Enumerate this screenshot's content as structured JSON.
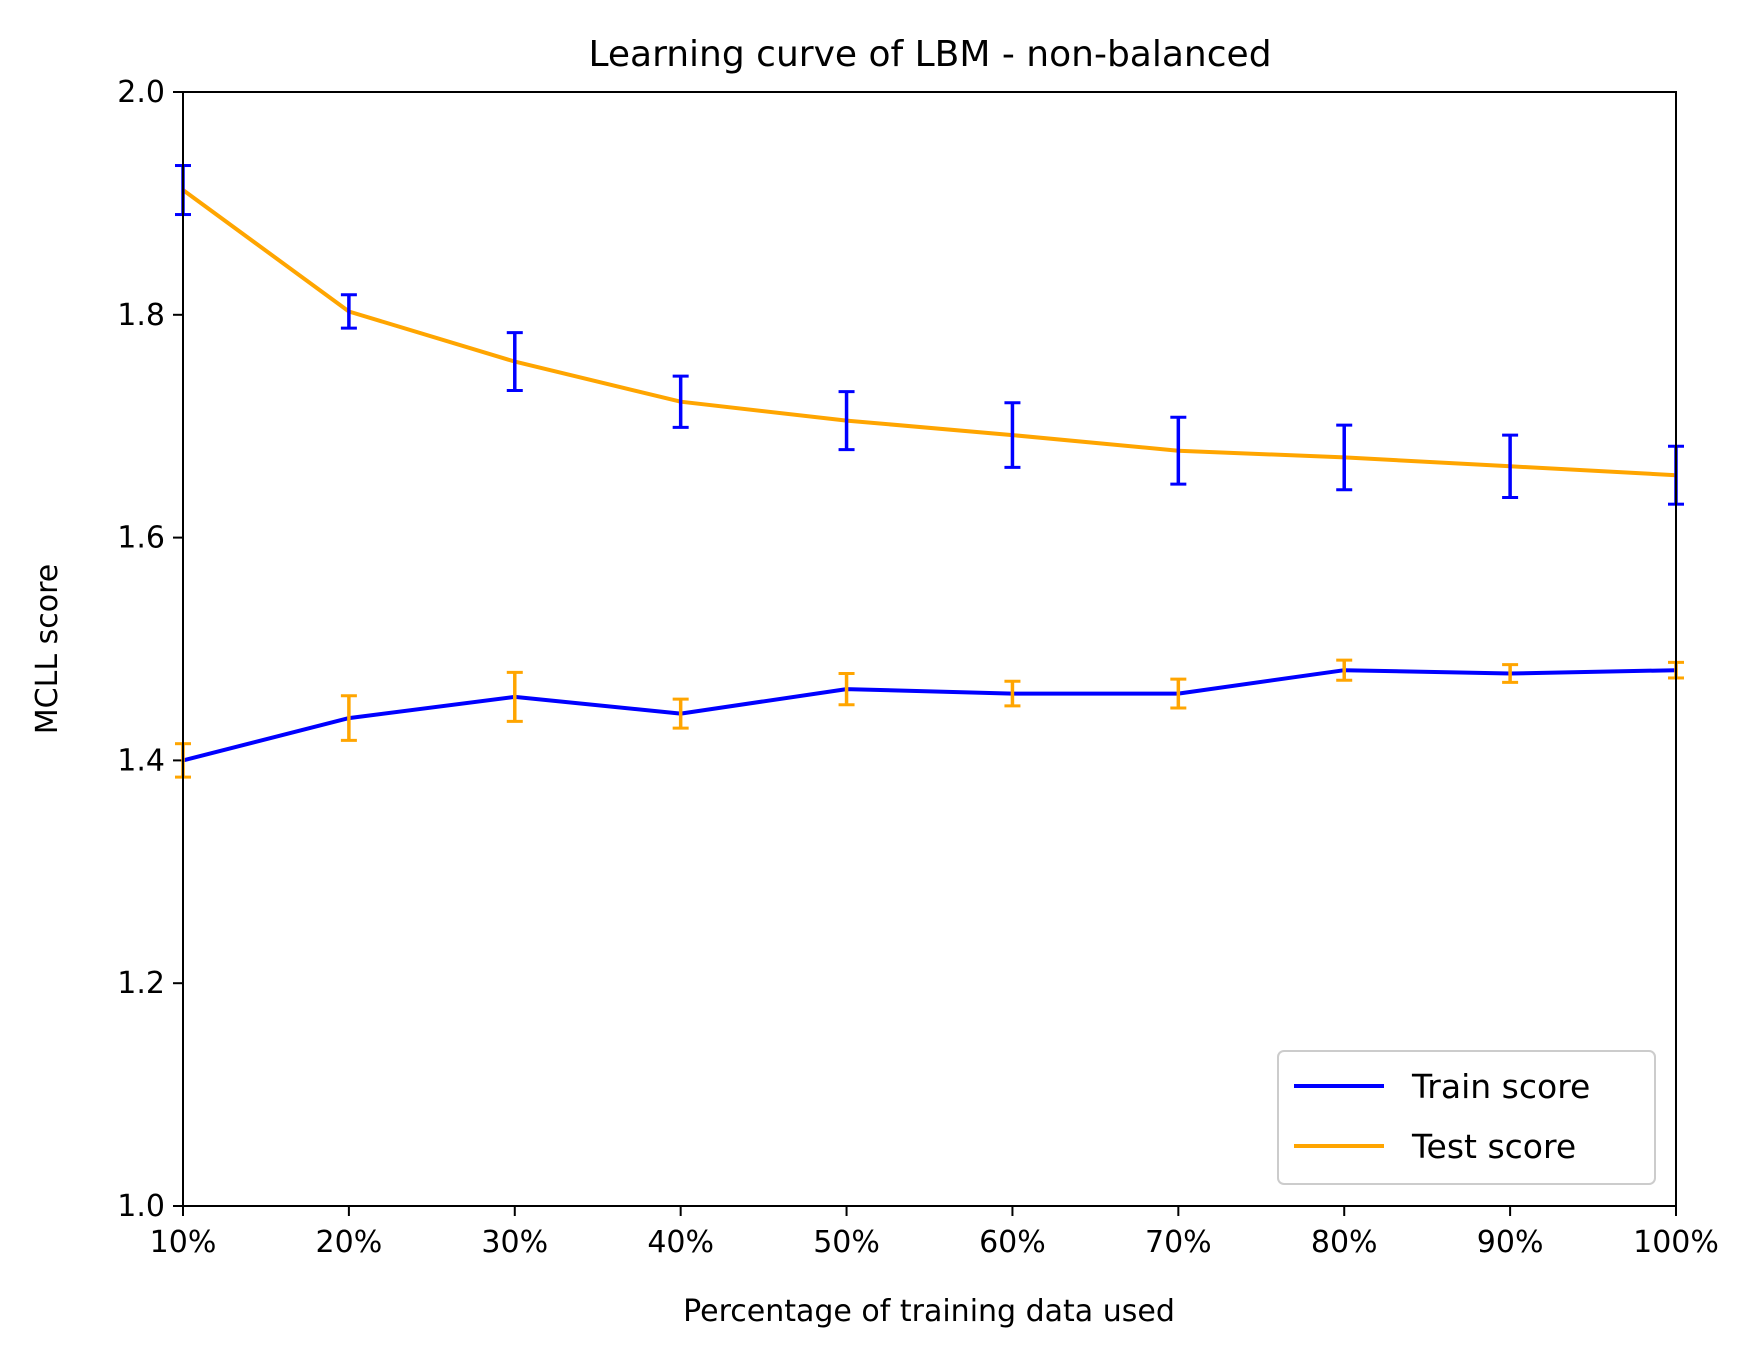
{
  "chart_data": {
    "type": "line",
    "title": "Learning curve of LBM - non-balanced",
    "xlabel": "Percentage of training data used",
    "ylabel": "MCLL score",
    "x_tick_labels": [
      "10%",
      "20%",
      "30%",
      "40%",
      "50%",
      "60%",
      "70%",
      "80%",
      "90%",
      "100%"
    ],
    "y_tick_labels": [
      "1.0",
      "1.2",
      "1.4",
      "1.6",
      "1.8",
      "2.0"
    ],
    "x": [
      10,
      20,
      30,
      40,
      50,
      60,
      70,
      80,
      90,
      100
    ],
    "xlim": [
      10,
      100
    ],
    "ylim": [
      1.0,
      2.0
    ],
    "grid": false,
    "legend_position": "lower-right",
    "series": [
      {
        "name": "Train score",
        "color": "#0000ff",
        "errorbar_color": "#ffa500",
        "values": [
          1.4,
          1.438,
          1.457,
          1.442,
          1.464,
          1.46,
          1.46,
          1.481,
          1.478,
          1.481
        ],
        "errors": [
          0.015,
          0.02,
          0.022,
          0.013,
          0.014,
          0.011,
          0.013,
          0.009,
          0.008,
          0.007
        ]
      },
      {
        "name": "Test score",
        "color": "#ffa500",
        "errorbar_color": "#0000ff",
        "values": [
          1.912,
          1.803,
          1.758,
          1.722,
          1.705,
          1.692,
          1.678,
          1.672,
          1.664,
          1.656
        ],
        "errors": [
          0.022,
          0.015,
          0.026,
          0.023,
          0.026,
          0.029,
          0.03,
          0.029,
          0.028,
          0.026
        ]
      }
    ]
  }
}
